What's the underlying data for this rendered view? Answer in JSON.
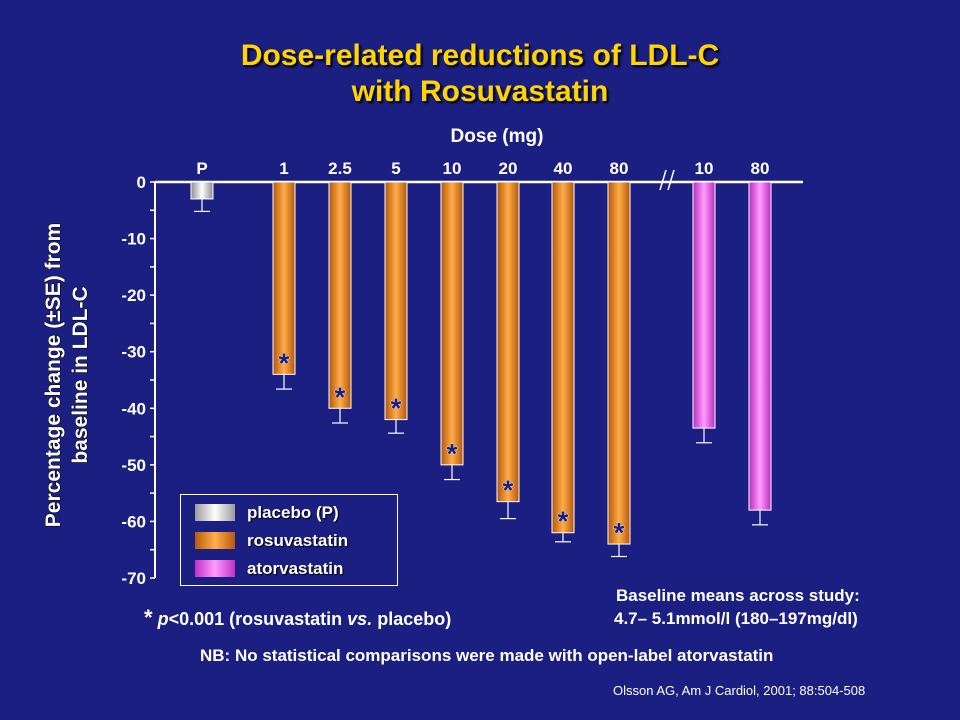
{
  "title_line1": "Dose-related reductions of LDL-C",
  "title_line2": "with Rosuvastatin",
  "chart_data": {
    "type": "bar",
    "title": "Dose-related reductions of LDL-C with Rosuvastatin",
    "xlabel": "Dose (mg)",
    "ylabel": "Percentage change (±SE) from baseline in LDL-C",
    "ylim": [
      -70,
      0
    ],
    "yticks": [
      0,
      -10,
      -20,
      -30,
      -40,
      -50,
      -60,
      -70
    ],
    "ytick_labels": [
      "0",
      "-10",
      "-20",
      "-30",
      "-40",
      "-50",
      "-60",
      "-70"
    ],
    "axis_break_symbol": "//",
    "categories": [
      "P",
      "1",
      "2.5",
      "5",
      "10",
      "20",
      "40",
      "80",
      "10",
      "80"
    ],
    "values": [
      -3,
      -34,
      -40,
      -42,
      -50,
      -56.5,
      -62,
      -64,
      -43.5,
      -58
    ],
    "error": [
      2.2,
      2.6,
      2.6,
      2.4,
      2.6,
      3,
      1.6,
      2.2,
      2.6,
      2.6
    ],
    "groups": [
      "placebo",
      "rosuvastatin",
      "rosuvastatin",
      "rosuvastatin",
      "rosuvastatin",
      "rosuvastatin",
      "rosuvastatin",
      "rosuvastatin",
      "atorvastatin",
      "atorvastatin"
    ],
    "significant": [
      false,
      true,
      true,
      true,
      true,
      true,
      true,
      true,
      false,
      false
    ],
    "significance_marker": "*",
    "legend": [
      {
        "name": "placebo (P)",
        "key": "placebo"
      },
      {
        "name": "rosuvastatin",
        "key": "rosuvastatin"
      },
      {
        "name": "atorvastatin",
        "key": "atorvastatin"
      }
    ],
    "legend_position": "bottom-left",
    "grid": false,
    "colors": {
      "placebo": "#d8d8d8",
      "rosuvastatin": "#f08a24",
      "atorvastatin": "#ee5cf0"
    }
  },
  "notes": {
    "pvalue_star": "*",
    "pvalue_p": "p",
    "pvalue_text1": "<0.001 (rosuvastatin ",
    "pvalue_vs": "vs.",
    "pvalue_text2": " placebo)",
    "baseline_line1": "Baseline means across study:",
    "baseline_line2": "4.7– 5.1mmol/l (180–197mg/dl)",
    "nb": "NB: No statistical comparisons were made with open-label atorvastatin",
    "citation": "Olsson AG, Am J Cardiol, 2001; 88:504-508"
  }
}
